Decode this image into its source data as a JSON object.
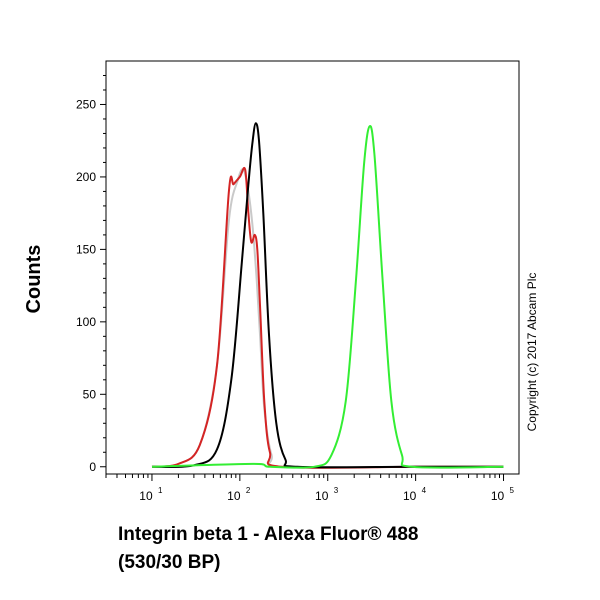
{
  "chart_data": {
    "type": "line",
    "xlabel_line1": "Integrin beta 1 - Alexa Fluor® 488",
    "xlabel_line2": "(530/30 BP)",
    "ylabel": "Counts",
    "copyright": "Copyright (c) 2017 Abcam Plc",
    "x_scale": "log",
    "xlim": [
      3,
      150000
    ],
    "ylim": [
      -5,
      280
    ],
    "y_ticks": [
      0,
      50,
      100,
      150,
      200,
      250
    ],
    "x_tick_labels": [
      {
        "base": "10",
        "exp": "1",
        "value": 10
      },
      {
        "base": "10",
        "exp": "2",
        "value": 100
      },
      {
        "base": "10",
        "exp": "3",
        "value": 1000
      },
      {
        "base": "10",
        "exp": "4",
        "value": 10000
      },
      {
        "base": "10",
        "exp": "5",
        "value": 100000
      }
    ],
    "series": [
      {
        "color": "#c9c9c9",
        "x": [
          10,
          20,
          35,
          55,
          75,
          95,
          110,
          125,
          140,
          155,
          170,
          190,
          230,
          300,
          10000,
          100000
        ],
        "y": [
          0,
          2,
          15,
          70,
          170,
          198,
          205,
          190,
          165,
          130,
          90,
          40,
          8,
          0,
          0,
          0
        ]
      },
      {
        "color": "#d42424",
        "x": [
          10,
          20,
          35,
          55,
          75,
          85,
          100,
          115,
          125,
          135,
          148,
          158,
          170,
          190,
          220,
          300,
          10000,
          100000
        ],
        "y": [
          0,
          2,
          15,
          70,
          190,
          195,
          200,
          205,
          175,
          155,
          160,
          150,
          110,
          45,
          10,
          0,
          0,
          0
        ]
      },
      {
        "color": "#000000",
        "x": [
          10,
          30,
          55,
          80,
          105,
          125,
          140,
          152,
          165,
          185,
          215,
          260,
          330,
          450,
          10000,
          100000
        ],
        "y": [
          0,
          1,
          12,
          60,
          140,
          195,
          225,
          237,
          225,
          175,
          90,
          30,
          5,
          0,
          0,
          0
        ]
      },
      {
        "color": "#33ee33",
        "x": [
          10,
          140,
          220,
          700,
          1100,
          1600,
          2100,
          2600,
          3000,
          3400,
          4200,
          5300,
          7000,
          9000,
          100000
        ],
        "y": [
          0,
          2,
          0,
          0,
          8,
          45,
          130,
          210,
          235,
          215,
          130,
          45,
          8,
          0,
          0
        ]
      }
    ]
  }
}
